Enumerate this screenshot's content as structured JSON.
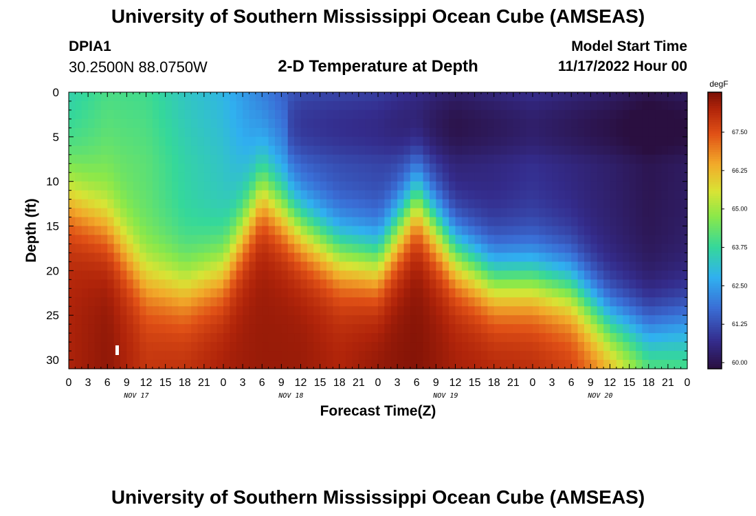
{
  "page": {
    "title": "University of Southern Mississippi Ocean Cube (AMSEAS)",
    "title_bottom": "University of Southern Mississippi Ocean Cube (AMSEAS)",
    "station_id": "DPIA1",
    "coordinates": "30.2500N  88.0750W",
    "plot_subtitle": "2-D Temperature at Depth",
    "model_start_label": "Model Start Time",
    "model_start_value": "11/17/2022 Hour 00"
  },
  "chart_data": {
    "type": "heatmap",
    "title": "2-D Temperature at Depth",
    "xlabel": "Forecast Time(Z)",
    "ylabel": "Depth (ft)",
    "x_range_hours": [
      0,
      96
    ],
    "x_tick_labels": [
      "0",
      "3",
      "6",
      "9",
      "12",
      "15",
      "18",
      "21",
      "0",
      "3",
      "6",
      "9",
      "12",
      "15",
      "18",
      "21",
      "0",
      "3",
      "6",
      "9",
      "12",
      "15",
      "18",
      "21",
      "0",
      "3",
      "6",
      "9",
      "12",
      "15",
      "18",
      "21",
      "0"
    ],
    "day_labels": [
      "NOV 17",
      "NOV 18",
      "NOV 19",
      "NOV 20"
    ],
    "y_range_ft": [
      0,
      31
    ],
    "y_ticks": [
      0,
      5,
      10,
      15,
      20,
      25,
      30
    ],
    "colorbar": {
      "unit": "degF",
      "range": [
        59.8,
        68.8
      ],
      "ticks": [
        "60.00",
        "61.25",
        "62.50",
        "63.75",
        "65.00",
        "66.25",
        "67.50"
      ]
    },
    "x_hours": [
      0,
      6,
      12,
      18,
      24,
      30,
      36,
      42,
      48,
      54,
      60,
      66,
      72,
      78,
      84,
      90,
      96
    ],
    "thermocline_depth_ft": [
      12,
      15,
      21,
      22,
      20,
      11,
      15,
      18,
      19,
      12,
      18,
      21,
      21,
      22,
      26,
      27,
      26
    ],
    "surface_temp_f": [
      63.5,
      64.0,
      63.9,
      63.3,
      62.9,
      62.0,
      61.2,
      61.1,
      61.0,
      60.6,
      60.3,
      60.5,
      60.7,
      60.5,
      60.3,
      60.0,
      60.2
    ],
    "bottom_temp_f": [
      68.3,
      68.6,
      68.0,
      68.1,
      68.4,
      68.5,
      68.5,
      68.3,
      68.6,
      68.7,
      68.4,
      68.3,
      68.2,
      67.9,
      67.0,
      65.0,
      64.5
    ]
  }
}
